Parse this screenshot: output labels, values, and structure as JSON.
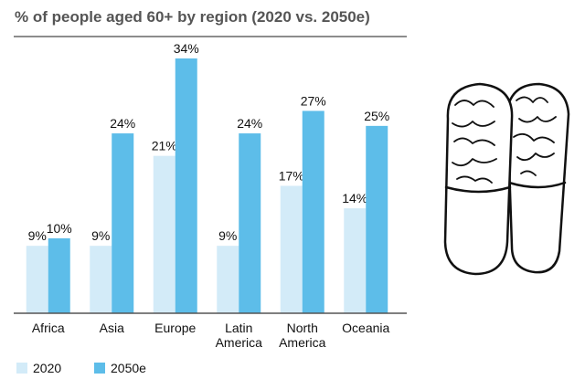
{
  "chart_data": {
    "type": "bar",
    "title": "% of people aged 60+ by region (2020 vs. 2050e)",
    "categories": [
      "Africa",
      "Asia",
      "Europe",
      "Latin America",
      "North America",
      "Oceania"
    ],
    "series": [
      {
        "name": "2020",
        "color": "#d3ebf8",
        "values": [
          9,
          9,
          21,
          9,
          17,
          14
        ],
        "value_labels": [
          "9%",
          "9%",
          "21%",
          "9%",
          "17%",
          "14%"
        ]
      },
      {
        "name": "2050e",
        "color": "#5dbde9",
        "values": [
          10,
          24,
          34,
          24,
          27,
          25
        ],
        "value_labels": [
          "10%",
          "24%",
          "34%",
          "24%",
          "27%",
          "25%"
        ]
      }
    ],
    "ylim": [
      0,
      34
    ]
  }
}
